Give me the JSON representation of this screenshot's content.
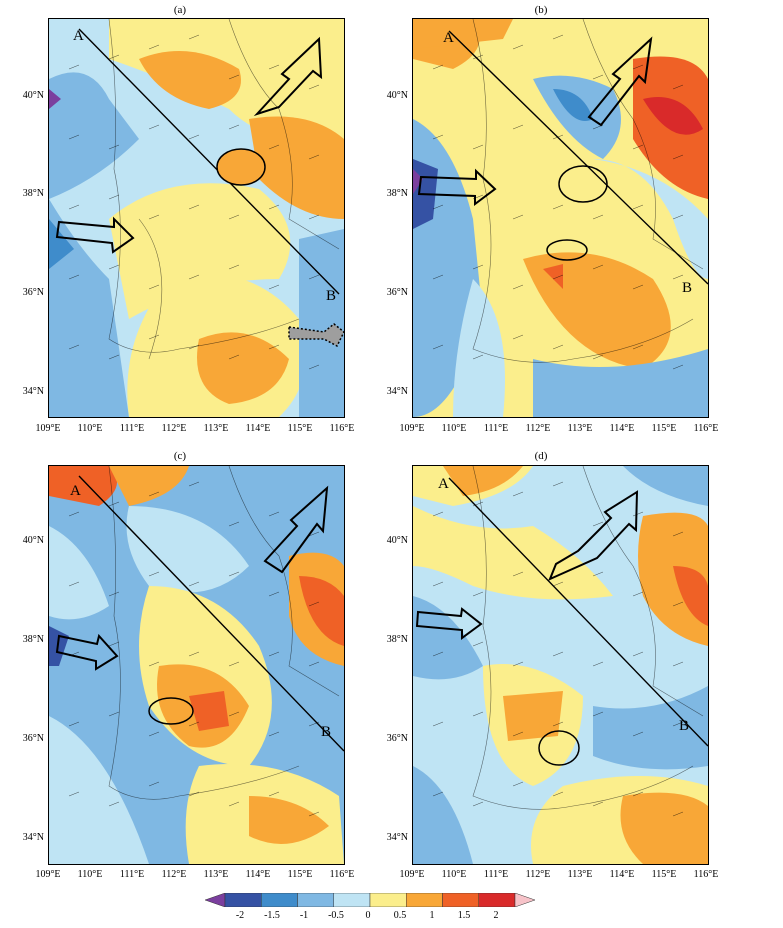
{
  "panels": [
    {
      "title": "(a)",
      "point_a": "A",
      "point_b": "B"
    },
    {
      "title": "(b)",
      "point_a": "A",
      "point_b": "B"
    },
    {
      "title": "(c)",
      "point_a": "A",
      "point_b": "B"
    },
    {
      "title": "(d)",
      "point_a": "A",
      "point_b": "B"
    }
  ],
  "lat_labels": [
    "40°N",
    "38°N",
    "36°N",
    "34°N"
  ],
  "lon_labels": [
    "109°E",
    "110°E",
    "111°E",
    "112°E",
    "113°E",
    "114°E",
    "115°E",
    "116°E"
  ],
  "colorbar": {
    "labels": [
      "-2",
      "-1.5",
      "-1",
      "-0.5",
      "0",
      "0.5",
      "1",
      "1.5",
      "2"
    ],
    "colors": [
      "#7b3f9e",
      "#3552a4",
      "#3f8ccb",
      "#7fb8e3",
      "#bfe4f4",
      "#fbee8c",
      "#f8a737",
      "#ef6126",
      "#d92a2a",
      "#f7c3c9"
    ]
  }
}
